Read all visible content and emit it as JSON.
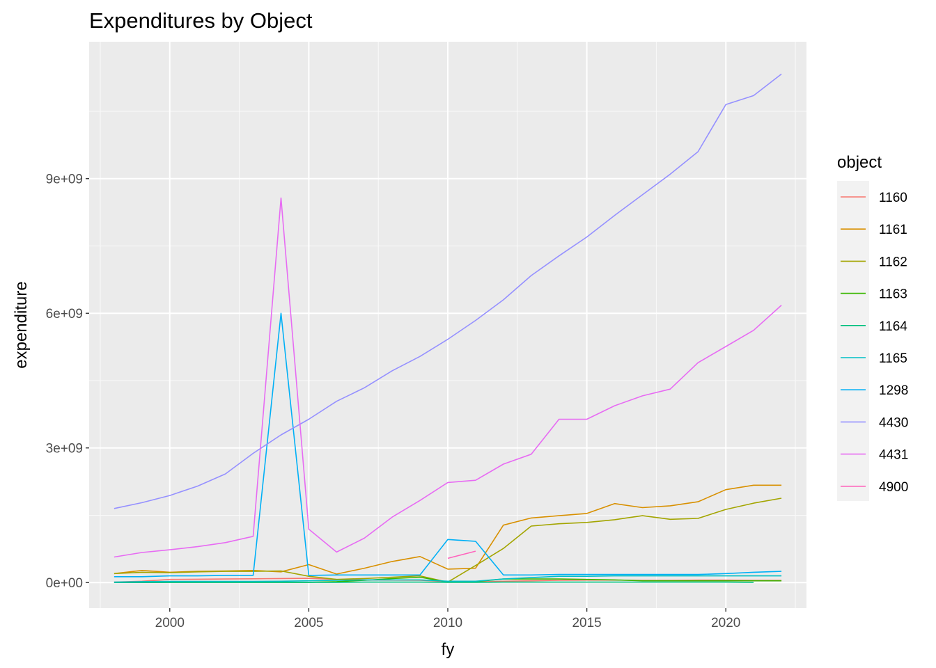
{
  "chart_data": {
    "type": "line",
    "title": "Expenditures by Object",
    "xlabel": "fy",
    "ylabel": "expenditure",
    "xlim": [
      1997.1,
      2022.9
    ],
    "ylim": [
      -570000000,
      12050000000
    ],
    "x_ticks": [
      2000,
      2005,
      2010,
      2015,
      2020
    ],
    "x_tick_labels": [
      "2000",
      "2005",
      "2010",
      "2015",
      "2020"
    ],
    "x_minor_ticks": [
      1997.5,
      2002.5,
      2007.5,
      2012.5,
      2017.5,
      2022.5
    ],
    "y_ticks": [
      0,
      3000000000,
      6000000000,
      9000000000
    ],
    "y_tick_labels": [
      "0e+00",
      "3e+09",
      "6e+09",
      "9e+09"
    ],
    "y_minor_ticks": [
      1500000000,
      4500000000,
      7500000000,
      10500000000
    ],
    "grid": true,
    "panel_background": "#ebebeb",
    "legend": {
      "title": "object",
      "position": "right"
    },
    "series": [
      {
        "name": "1160",
        "color": "#F8766D",
        "x": [
          1998,
          1999,
          2000,
          2001,
          2002,
          2003,
          2004,
          2005,
          2006,
          2007,
          2008,
          2009,
          2010,
          2011,
          2012,
          2013,
          2014,
          2015,
          2016,
          2017,
          2018,
          2019,
          2020,
          2021,
          2022
        ],
        "values": [
          10000000,
          30000000,
          70000000,
          75000000,
          80000000,
          85000000,
          90000000,
          95000000,
          70000000,
          60000000,
          55000000,
          50000000,
          20000000,
          15000000,
          30000000,
          40000000,
          50000000,
          55000000,
          55000000,
          50000000,
          50000000,
          55000000,
          55000000,
          50000000,
          50000000
        ]
      },
      {
        "name": "1161",
        "color": "#D89000",
        "x": [
          1998,
          1999,
          2000,
          2001,
          2002,
          2003,
          2004,
          2005,
          2006,
          2007,
          2008,
          2009,
          2010,
          2011,
          2012,
          2013,
          2014,
          2015,
          2016,
          2017,
          2018,
          2019,
          2020,
          2021,
          2022
        ],
        "values": [
          200000000,
          270000000,
          230000000,
          250000000,
          260000000,
          270000000,
          240000000,
          400000000,
          190000000,
          320000000,
          470000000,
          580000000,
          300000000,
          320000000,
          1280000000,
          1440000000,
          1490000000,
          1540000000,
          1760000000,
          1670000000,
          1710000000,
          1800000000,
          2070000000,
          2170000000,
          2170000000
        ]
      },
      {
        "name": "1162",
        "color": "#A3A500",
        "x": [
          1998,
          1999,
          2000,
          2001,
          2002,
          2003,
          2004,
          2005,
          2006,
          2007,
          2008,
          2009,
          2010,
          2011,
          2012,
          2013,
          2014,
          2015,
          2016,
          2017,
          2018,
          2019,
          2020,
          2021,
          2022
        ],
        "values": [
          200000000,
          230000000,
          220000000,
          240000000,
          250000000,
          250000000,
          260000000,
          140000000,
          70000000,
          90000000,
          120000000,
          150000000,
          10000000,
          380000000,
          760000000,
          1260000000,
          1310000000,
          1340000000,
          1400000000,
          1490000000,
          1410000000,
          1430000000,
          1630000000,
          1770000000,
          1880000000
        ]
      },
      {
        "name": "1163",
        "color": "#39B600",
        "x": [
          1998,
          1999,
          2000,
          2001,
          2002,
          2003,
          2004,
          2005,
          2006,
          2007,
          2008,
          2009,
          2010,
          2011,
          2012,
          2013,
          2014,
          2015,
          2016,
          2017,
          2018,
          2019,
          2020,
          2021,
          2022
        ],
        "values": [
          5000000,
          5000000,
          5000000,
          5000000,
          5000000,
          5000000,
          5000000,
          5000000,
          20000000,
          50000000,
          90000000,
          120000000,
          10000000,
          20000000,
          80000000,
          80000000,
          80000000,
          70000000,
          60000000,
          40000000,
          40000000,
          40000000,
          40000000,
          40000000,
          40000000
        ]
      },
      {
        "name": "1164",
        "color": "#00BF7D",
        "x": [
          1998,
          1999,
          2000,
          2001,
          2002,
          2003,
          2004,
          2005,
          2006,
          2007,
          2008,
          2009,
          2010,
          2011,
          2012,
          2013,
          2014,
          2015,
          2016,
          2017,
          2018,
          2019,
          2020,
          2021
        ],
        "values": [
          0,
          0,
          5000000,
          5000000,
          5000000,
          5000000,
          5000000,
          5000000,
          5000000,
          10000000,
          10000000,
          10000000,
          5000000,
          5000000,
          10000000,
          10000000,
          10000000,
          10000000,
          10000000,
          10000000,
          10000000,
          10000000,
          10000000,
          5000000
        ]
      },
      {
        "name": "1165",
        "color": "#00BFC4",
        "x": [
          1998,
          1999,
          2000,
          2001,
          2002,
          2003,
          2004,
          2005,
          2006,
          2007,
          2008,
          2009,
          2010,
          2011,
          2012,
          2013,
          2014,
          2015,
          2016,
          2017,
          2018,
          2019,
          2020,
          2021,
          2022
        ],
        "values": [
          10000000,
          20000000,
          25000000,
          25000000,
          25000000,
          25000000,
          30000000,
          40000000,
          50000000,
          60000000,
          60000000,
          60000000,
          30000000,
          30000000,
          80000000,
          110000000,
          140000000,
          140000000,
          150000000,
          150000000,
          150000000,
          150000000,
          150000000,
          150000000,
          150000000
        ]
      },
      {
        "name": "1298",
        "color": "#00B0F6",
        "x": [
          1998,
          1999,
          2000,
          2001,
          2002,
          2003,
          2004,
          2005,
          2006,
          2007,
          2008,
          2009,
          2010,
          2011,
          2012,
          2013,
          2014,
          2015,
          2016,
          2017,
          2018,
          2019,
          2020,
          2021,
          2022
        ],
        "values": [
          130000000,
          130000000,
          150000000,
          150000000,
          160000000,
          160000000,
          6000000000,
          160000000,
          170000000,
          170000000,
          170000000,
          170000000,
          960000000,
          920000000,
          170000000,
          170000000,
          180000000,
          180000000,
          180000000,
          180000000,
          180000000,
          180000000,
          200000000,
          230000000,
          250000000
        ]
      },
      {
        "name": "4430",
        "color": "#9590FF",
        "x": [
          1998,
          1999,
          2000,
          2001,
          2002,
          2003,
          2004,
          2005,
          2006,
          2007,
          2008,
          2009,
          2010,
          2011,
          2012,
          2013,
          2014,
          2015,
          2016,
          2017,
          2018,
          2019,
          2020,
          2021,
          2022
        ],
        "values": [
          1650000000,
          1780000000,
          1940000000,
          2150000000,
          2420000000,
          2880000000,
          3290000000,
          3640000000,
          4040000000,
          4340000000,
          4720000000,
          5040000000,
          5420000000,
          5840000000,
          6300000000,
          6840000000,
          7280000000,
          7700000000,
          8180000000,
          8640000000,
          9100000000,
          9600000000,
          10650000000,
          10850000000,
          11330000000
        ]
      },
      {
        "name": "4431",
        "color": "#E76BF3",
        "x": [
          1998,
          1999,
          2000,
          2001,
          2002,
          2003,
          2004,
          2005,
          2006,
          2007,
          2008,
          2009,
          2010,
          2011,
          2012,
          2013,
          2014,
          2015,
          2016,
          2017,
          2018,
          2019,
          2020,
          2021,
          2022
        ],
        "values": [
          570000000,
          670000000,
          730000000,
          800000000,
          890000000,
          1030000000,
          8570000000,
          1190000000,
          680000000,
          990000000,
          1460000000,
          1830000000,
          2230000000,
          2280000000,
          2640000000,
          2860000000,
          3640000000,
          3640000000,
          3940000000,
          4160000000,
          4310000000,
          4900000000,
          5260000000,
          5620000000,
          6180000000
        ]
      },
      {
        "name": "4900",
        "color": "#FF62BC",
        "x": [
          2010,
          2011
        ],
        "values": [
          540000000,
          700000000
        ]
      }
    ]
  }
}
